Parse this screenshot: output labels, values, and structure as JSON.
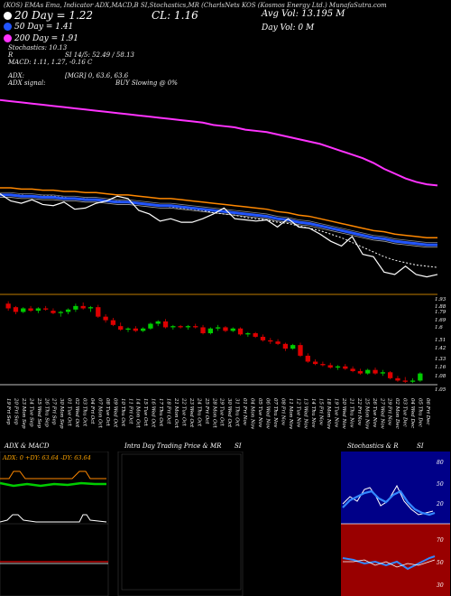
{
  "header": {
    "line1": "(KOS) EMAs Ema, Indicator ADX,MACD,B SI,Stochastics,MR (CharlsNets KOS (Kosmos Energy Ltd.) MunafaSutra.com",
    "ma20": "20  Day = 1.22",
    "ma50": "50  Day = 1.41",
    "ma200": "200  Day = 1.91",
    "cl": "CL: 1.16",
    "avg_vol": "Avg Vol: 13.195  M",
    "day_vol": "Day Vol: 0   M",
    "stoch": "Stochastics: 10.13",
    "si": "SI 14/5: 52.49 / 58.13",
    "r_label": "R",
    "macd": "MACD: 1.11, 1.27, -0.16  C",
    "adx": "ADX:",
    "adx_signal": "ADX  signal:",
    "mgr": "[MGR] 0,  63.6,  63.6",
    "buy": "BUY Slowing @ 0%"
  },
  "colors": {
    "ma20": "#ffffff",
    "ma50": "#2255ff",
    "ma200": "#ff33ff",
    "orange": "#ff8800",
    "bull": "#00cc00",
    "bear": "#dd0000",
    "panel_line": "#ffa500"
  },
  "panels": {
    "adx_title": "ADX  & MACD",
    "adx_readout": "ADX: 0  +DY: 63.64  -DY: 63.64",
    "intra_title": "Intra Day Trading Price  & MR",
    "si_title_mid": "SI",
    "stoch_title": "Stochastics  & R",
    "si_title_right": "SI"
  },
  "chart_data": [
    {
      "type": "line",
      "title": "EMAs",
      "series": [
        {
          "name": "20 Day",
          "values": [
            1.84,
            1.83,
            1.83,
            1.82,
            1.82,
            1.82,
            1.81,
            1.8,
            1.8,
            1.79,
            1.78,
            1.78,
            1.77,
            1.76,
            1.75,
            1.74,
            1.73,
            1.72,
            1.71,
            1.7,
            1.68,
            1.67,
            1.66,
            1.64,
            1.63,
            1.62,
            1.6,
            1.59,
            1.57,
            1.55,
            1.53,
            1.5,
            1.47,
            1.43,
            1.39,
            1.35,
            1.31,
            1.28,
            1.26,
            1.24,
            1.23,
            1.22
          ]
        },
        {
          "name": "50 Day",
          "values": [
            1.83,
            1.83,
            1.82,
            1.82,
            1.81,
            1.81,
            1.8,
            1.8,
            1.79,
            1.79,
            1.78,
            1.77,
            1.77,
            1.76,
            1.75,
            1.74,
            1.74,
            1.73,
            1.72,
            1.71,
            1.7,
            1.69,
            1.68,
            1.67,
            1.66,
            1.65,
            1.63,
            1.62,
            1.6,
            1.59,
            1.57,
            1.55,
            1.53,
            1.51,
            1.49,
            1.47,
            1.46,
            1.44,
            1.43,
            1.42,
            1.41,
            1.41
          ]
        },
        {
          "name": "200 Day",
          "values": [
            2.63,
            2.62,
            2.61,
            2.6,
            2.59,
            2.58,
            2.57,
            2.56,
            2.55,
            2.54,
            2.53,
            2.52,
            2.51,
            2.5,
            2.49,
            2.48,
            2.47,
            2.46,
            2.45,
            2.44,
            2.42,
            2.41,
            2.4,
            2.38,
            2.37,
            2.36,
            2.34,
            2.32,
            2.3,
            2.28,
            2.26,
            2.23,
            2.2,
            2.17,
            2.14,
            2.1,
            2.05,
            2.01,
            1.97,
            1.94,
            1.92,
            1.91
          ]
        },
        {
          "name": "Close",
          "values": [
            1.84,
            1.78,
            1.76,
            1.79,
            1.75,
            1.74,
            1.77,
            1.71,
            1.72,
            1.76,
            1.78,
            1.82,
            1.8,
            1.7,
            1.67,
            1.61,
            1.63,
            1.6,
            1.6,
            1.63,
            1.67,
            1.72,
            1.63,
            1.62,
            1.61,
            1.62,
            1.56,
            1.63,
            1.56,
            1.55,
            1.5,
            1.44,
            1.4,
            1.48,
            1.33,
            1.31,
            1.18,
            1.16,
            1.23,
            1.16,
            1.14,
            1.16
          ]
        }
      ]
    },
    {
      "type": "bar",
      "title": "Price",
      "categories": [
        "19 Fri Sep",
        "20 Fri Sep",
        "23 Mon Sep",
        "24 Tue Sep",
        "25 Wed Sep",
        "26 Thu Sep",
        "27 Fri Sep",
        "30 Mon Sep",
        "01 Tue Oct",
        "02 Wed Oct",
        "03 Thu Oct",
        "04 Fri Oct",
        "07 Mon Oct",
        "08 Tue Oct",
        "09 Wed Oct",
        "10 Thu Oct",
        "11 Fri Oct",
        "14 Mon Oct",
        "15 Tue Oct",
        "16 Wed Oct",
        "17 Thu Oct",
        "18 Fri Oct",
        "21 Mon Oct",
        "22 Tue Oct",
        "23 Wed Oct",
        "24 Thu Oct",
        "25 Fri Oct",
        "28 Mon Oct",
        "29 Tue Oct",
        "30 Wed Oct",
        "31 Thu Oct",
        "01 Fri Nov",
        "04 Mon Nov",
        "05 Tue Nov",
        "06 Wed Nov",
        "07 Thu Nov",
        "08 Fri Nov",
        "11 Mon Nov",
        "12 Tue Nov",
        "13 Wed Nov",
        "14 Thu Nov",
        "15 Fri Nov",
        "18 Mon Nov",
        "19 Tue Nov",
        "20 Wed Nov",
        "21 Thu Nov",
        "22 Fri Nov",
        "25 Mon Nov",
        "26 Tue Nov",
        "27 Wed Nov",
        "29 Fri Nov",
        "02 Mon Dec",
        "03 Tue Dec",
        "04 Wed Dec",
        "05 Thu Dec",
        "06 Fri Dec"
      ],
      "ohlc": [
        [
          1.82,
          1.84,
          1.76,
          1.78
        ],
        [
          1.79,
          1.8,
          1.73,
          1.75
        ],
        [
          1.75,
          1.79,
          1.74,
          1.78
        ],
        [
          1.78,
          1.8,
          1.75,
          1.76
        ],
        [
          1.76,
          1.79,
          1.74,
          1.78
        ],
        [
          1.78,
          1.8,
          1.76,
          1.77
        ],
        [
          1.76,
          1.78,
          1.73,
          1.74
        ],
        [
          1.74,
          1.76,
          1.71,
          1.75
        ],
        [
          1.75,
          1.78,
          1.73,
          1.77
        ],
        [
          1.77,
          1.82,
          1.75,
          1.8
        ],
        [
          1.8,
          1.83,
          1.77,
          1.78
        ],
        [
          1.78,
          1.8,
          1.75,
          1.79
        ],
        [
          1.79,
          1.81,
          1.7,
          1.71
        ],
        [
          1.71,
          1.73,
          1.66,
          1.68
        ],
        [
          1.68,
          1.7,
          1.63,
          1.64
        ],
        [
          1.63,
          1.66,
          1.59,
          1.6
        ],
        [
          1.6,
          1.62,
          1.58,
          1.61
        ],
        [
          1.61,
          1.63,
          1.58,
          1.59
        ],
        [
          1.59,
          1.62,
          1.58,
          1.61
        ],
        [
          1.61,
          1.66,
          1.6,
          1.65
        ],
        [
          1.65,
          1.68,
          1.63,
          1.67
        ],
        [
          1.67,
          1.69,
          1.61,
          1.62
        ],
        [
          1.62,
          1.64,
          1.6,
          1.63
        ],
        [
          1.63,
          1.64,
          1.61,
          1.62
        ],
        [
          1.62,
          1.64,
          1.6,
          1.63
        ],
        [
          1.63,
          1.65,
          1.61,
          1.62
        ],
        [
          1.62,
          1.64,
          1.56,
          1.57
        ],
        [
          1.57,
          1.62,
          1.56,
          1.61
        ],
        [
          1.61,
          1.64,
          1.59,
          1.62
        ],
        [
          1.62,
          1.63,
          1.58,
          1.59
        ],
        [
          1.59,
          1.62,
          1.58,
          1.61
        ],
        [
          1.61,
          1.62,
          1.55,
          1.56
        ],
        [
          1.56,
          1.58,
          1.54,
          1.57
        ],
        [
          1.57,
          1.58,
          1.53,
          1.54
        ],
        [
          1.54,
          1.56,
          1.5,
          1.51
        ],
        [
          1.51,
          1.53,
          1.48,
          1.5
        ],
        [
          1.5,
          1.52,
          1.47,
          1.48
        ],
        [
          1.48,
          1.49,
          1.42,
          1.44
        ],
        [
          1.44,
          1.48,
          1.43,
          1.47
        ],
        [
          1.47,
          1.49,
          1.37,
          1.38
        ],
        [
          1.38,
          1.4,
          1.32,
          1.33
        ],
        [
          1.33,
          1.35,
          1.3,
          1.31
        ],
        [
          1.31,
          1.33,
          1.29,
          1.3
        ],
        [
          1.3,
          1.32,
          1.27,
          1.28
        ],
        [
          1.28,
          1.3,
          1.26,
          1.29
        ],
        [
          1.29,
          1.31,
          1.26,
          1.27
        ],
        [
          1.27,
          1.29,
          1.24,
          1.25
        ],
        [
          1.25,
          1.27,
          1.22,
          1.23
        ],
        [
          1.23,
          1.27,
          1.22,
          1.26
        ],
        [
          1.26,
          1.28,
          1.22,
          1.23
        ],
        [
          1.23,
          1.26,
          1.21,
          1.24
        ],
        [
          1.24,
          1.25,
          1.18,
          1.19
        ],
        [
          1.19,
          1.21,
          1.16,
          1.17
        ],
        [
          1.17,
          1.2,
          1.15,
          1.16
        ],
        [
          1.16,
          1.19,
          1.15,
          1.17
        ],
        [
          1.17,
          1.24,
          1.16,
          1.23
        ]
      ],
      "ylim": [
        1.12,
        1.86
      ],
      "tick_labels": [
        "1.93",
        "1.88",
        "1.79",
        "1.69",
        "1.6",
        "1.51",
        "1.42",
        "1.33",
        "1.16",
        "1.08",
        "1.05"
      ]
    }
  ]
}
